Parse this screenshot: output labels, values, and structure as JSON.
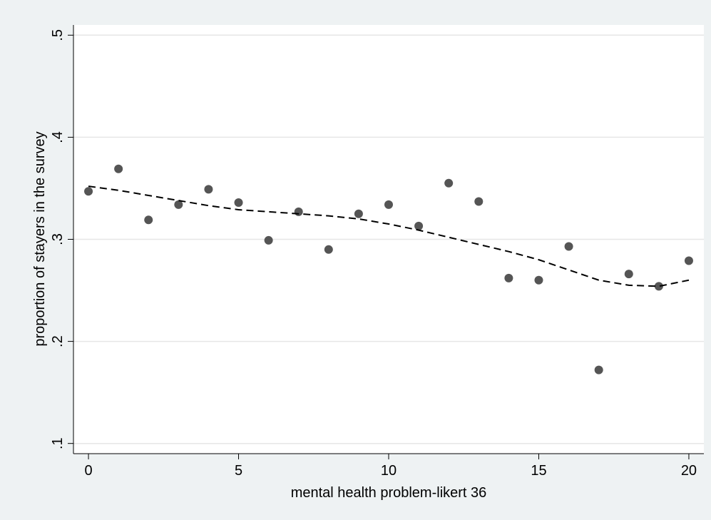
{
  "chart_data": {
    "type": "scatter",
    "x_label": "mental health problem-likert 36",
    "y_label": "proportion of stayers in the survey",
    "x": [
      0,
      1,
      2,
      3,
      4,
      5,
      6,
      7,
      8,
      9,
      10,
      11,
      12,
      13,
      14,
      15,
      16,
      17,
      18,
      19,
      20
    ],
    "series": [
      {
        "type": "scatter",
        "color": "#555555",
        "values": [
          0.347,
          0.369,
          0.319,
          0.334,
          0.349,
          0.336,
          0.299,
          0.327,
          0.29,
          0.325,
          0.334,
          0.313,
          0.355,
          0.337,
          0.262,
          0.26,
          0.293,
          0.172,
          0.266,
          0.254,
          0.279
        ]
      },
      {
        "type": "line",
        "color": "#000000",
        "dashed": true,
        "values": [
          0.352,
          0.348,
          0.343,
          0.338,
          0.333,
          0.329,
          0.327,
          0.325,
          0.323,
          0.32,
          0.315,
          0.309,
          0.302,
          0.295,
          0.288,
          0.28,
          0.27,
          0.26,
          0.255,
          0.254,
          0.26
        ]
      }
    ],
    "xlim": [
      -0.5,
      20.5
    ],
    "xticks": [
      0,
      5,
      10,
      15,
      20
    ],
    "ylim": [
      0.09,
      0.51
    ],
    "yticks": [
      {
        "value": 0.1,
        "label": ".1"
      },
      {
        "value": 0.2,
        "label": ".2"
      },
      {
        "value": 0.3,
        "label": ".3"
      },
      {
        "value": 0.4,
        "label": ".4"
      },
      {
        "value": 0.5,
        "label": ".5"
      }
    ],
    "grid": true
  }
}
